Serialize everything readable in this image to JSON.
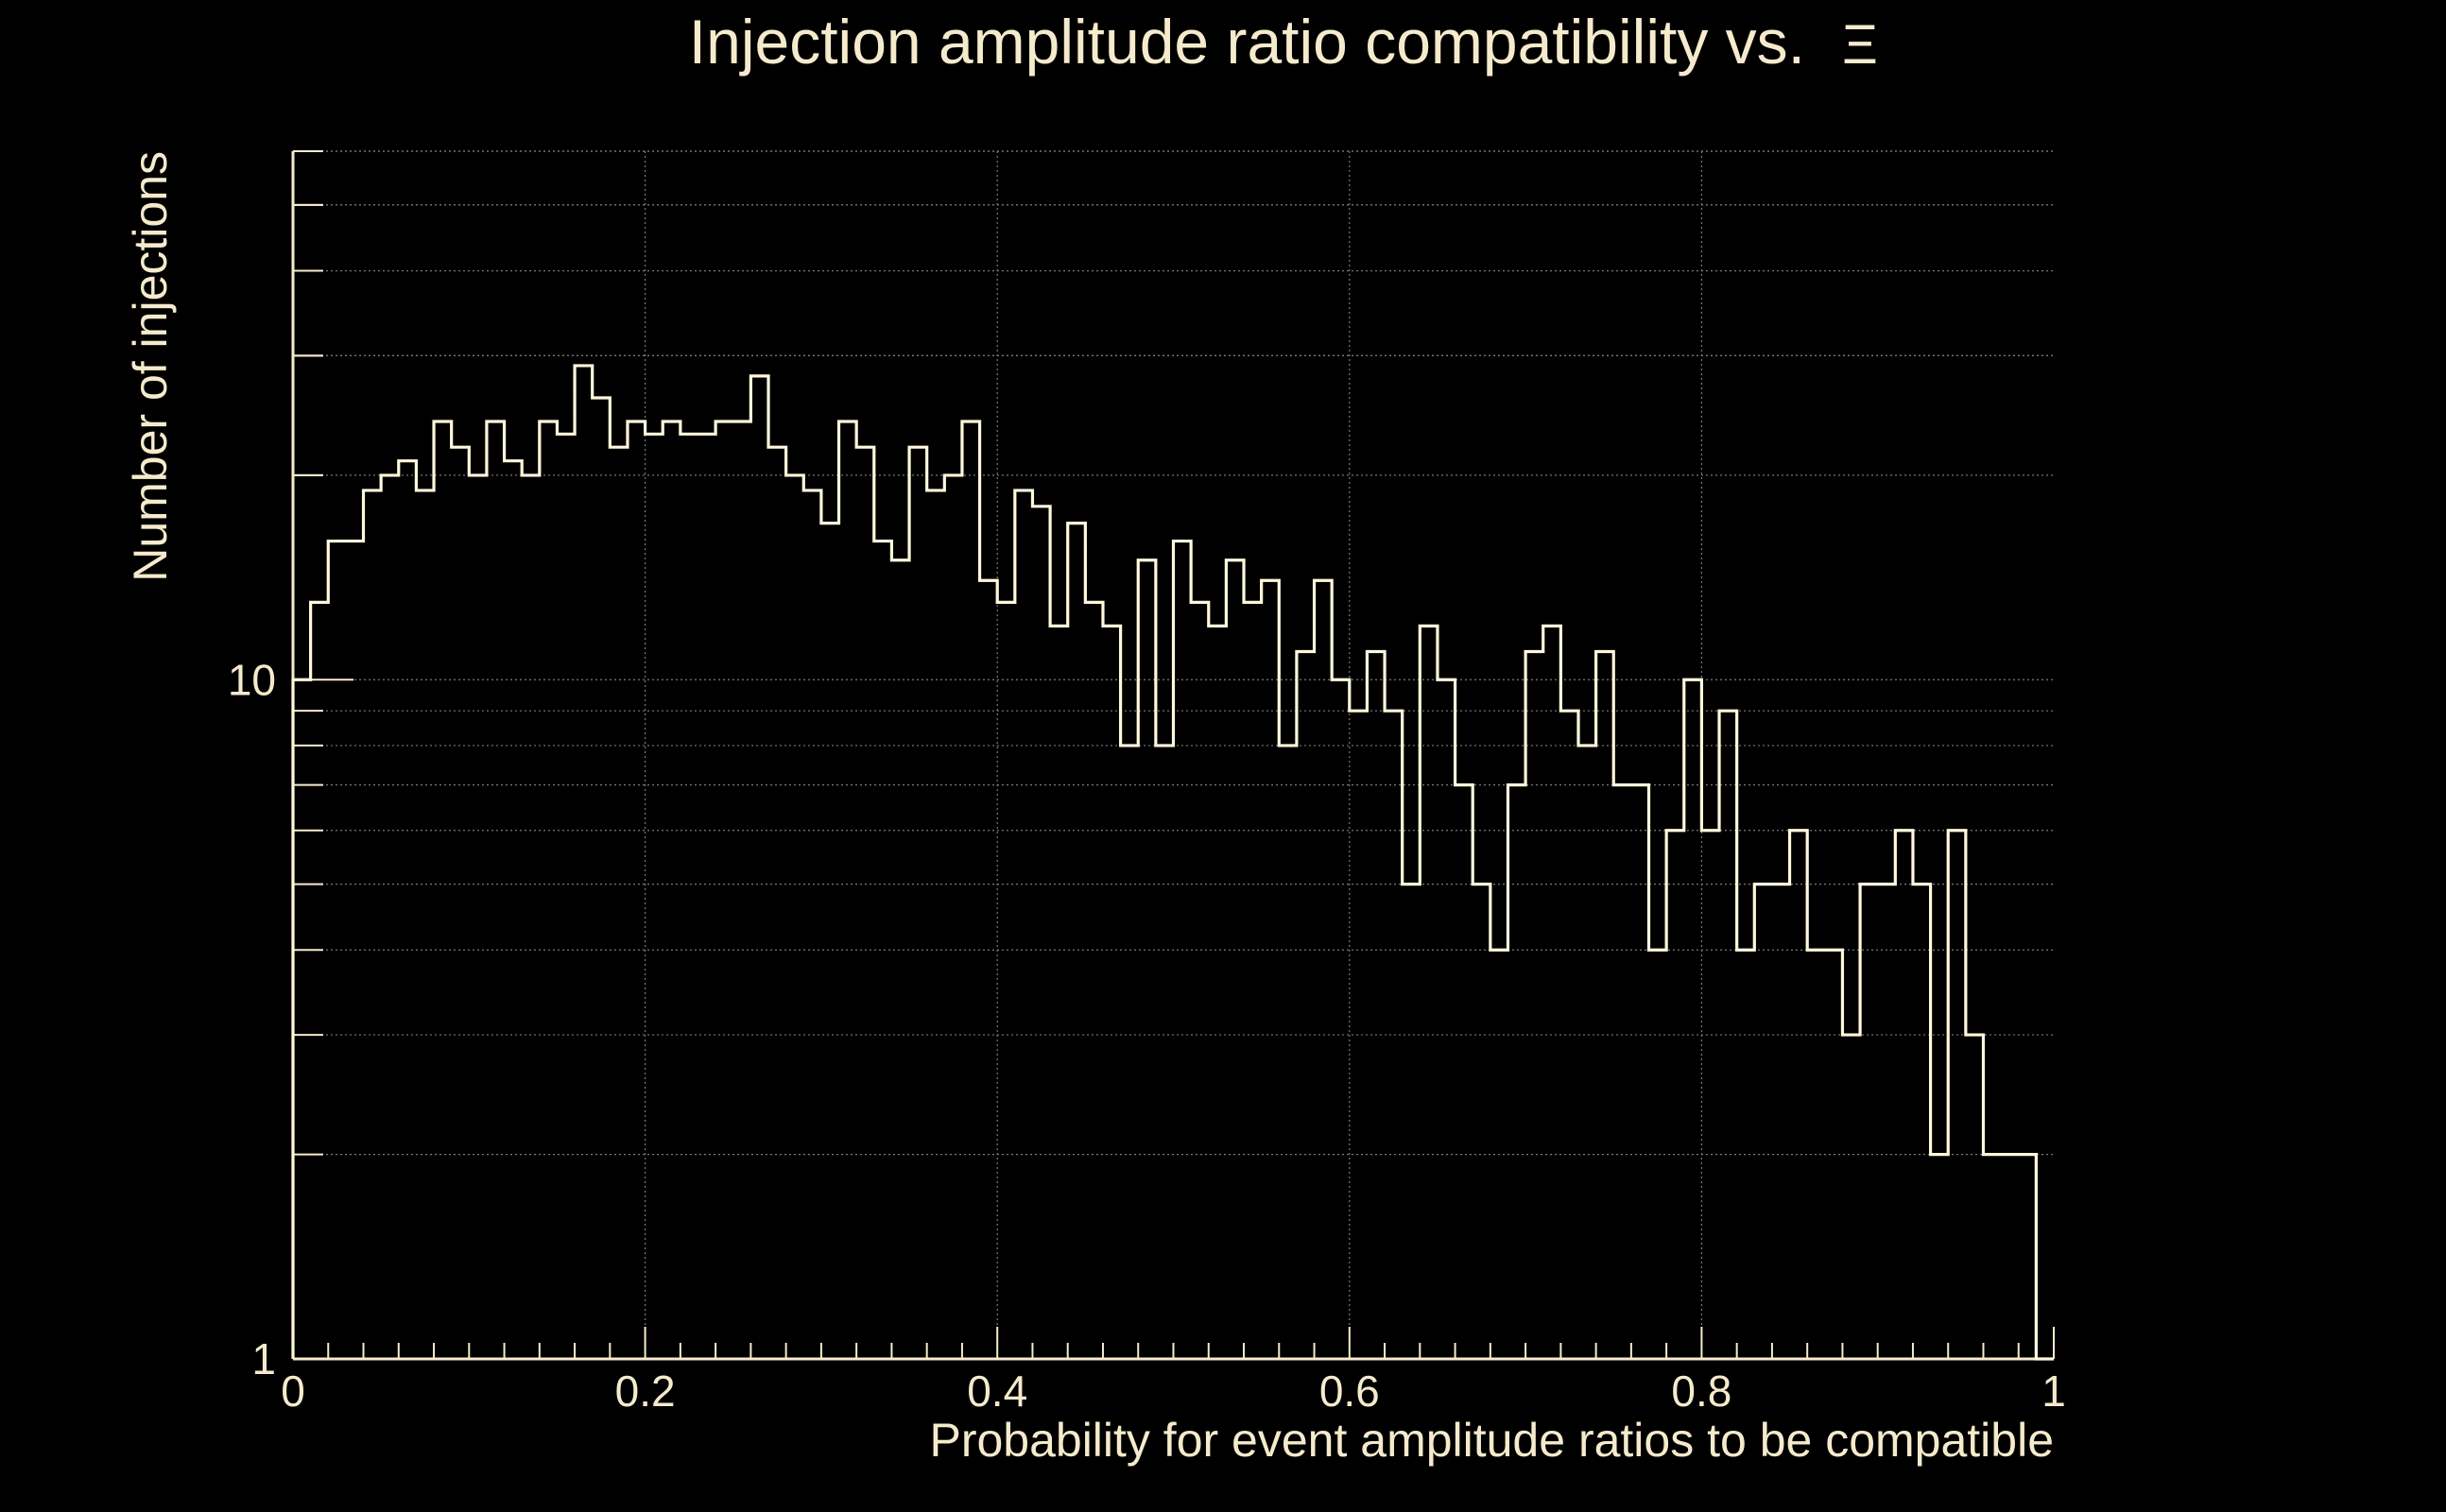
{
  "chart_data": {
    "type": "histogram",
    "title": "Injection amplitude ratio compatibility vs.",
    "title_symbol": "Ξ",
    "xlabel": "Probability for event amplitude ratios to be compatible",
    "ylabel": "Number of injections",
    "x_scale": "linear",
    "y_scale": "log",
    "xlim": [
      0,
      1
    ],
    "ylim": [
      1,
      60
    ],
    "x_ticks": [
      {
        "value": 0,
        "label": "0"
      },
      {
        "value": 0.2,
        "label": "0.2"
      },
      {
        "value": 0.4,
        "label": "0.4"
      },
      {
        "value": 0.6,
        "label": "0.6"
      },
      {
        "value": 0.8,
        "label": "0.8"
      },
      {
        "value": 1,
        "label": "1"
      }
    ],
    "y_ticks": [
      {
        "value": 1,
        "label": "1"
      },
      {
        "value": 10,
        "label": "10"
      }
    ],
    "grid": true,
    "bin_width": 0.01,
    "bins_start": 0,
    "counts": [
      10,
      13,
      16,
      16,
      19,
      20,
      21,
      19,
      24,
      22,
      20,
      24,
      21,
      20,
      24,
      23,
      29,
      26,
      22,
      24,
      23,
      24,
      23,
      23,
      24,
      24,
      28,
      22,
      20,
      19,
      17,
      24,
      22,
      16,
      15,
      22,
      19,
      20,
      24,
      14,
      13,
      19,
      18,
      12,
      17,
      13,
      12,
      8,
      15,
      8,
      16,
      13,
      12,
      15,
      13,
      14,
      8,
      11,
      14,
      10,
      9,
      11,
      9,
      5,
      12,
      10,
      7,
      5,
      4,
      7,
      11,
      12,
      9,
      8,
      11,
      7,
      7,
      4,
      6,
      10,
      6,
      9,
      4,
      5,
      5,
      6,
      4,
      4,
      3,
      5,
      5,
      6,
      5,
      2,
      6,
      3,
      2,
      2,
      2,
      1
    ],
    "colors": {
      "background": "#000000",
      "foreground": "#f5ebcc",
      "line": "#fff8dc",
      "grid": "#7a7a7a"
    }
  }
}
